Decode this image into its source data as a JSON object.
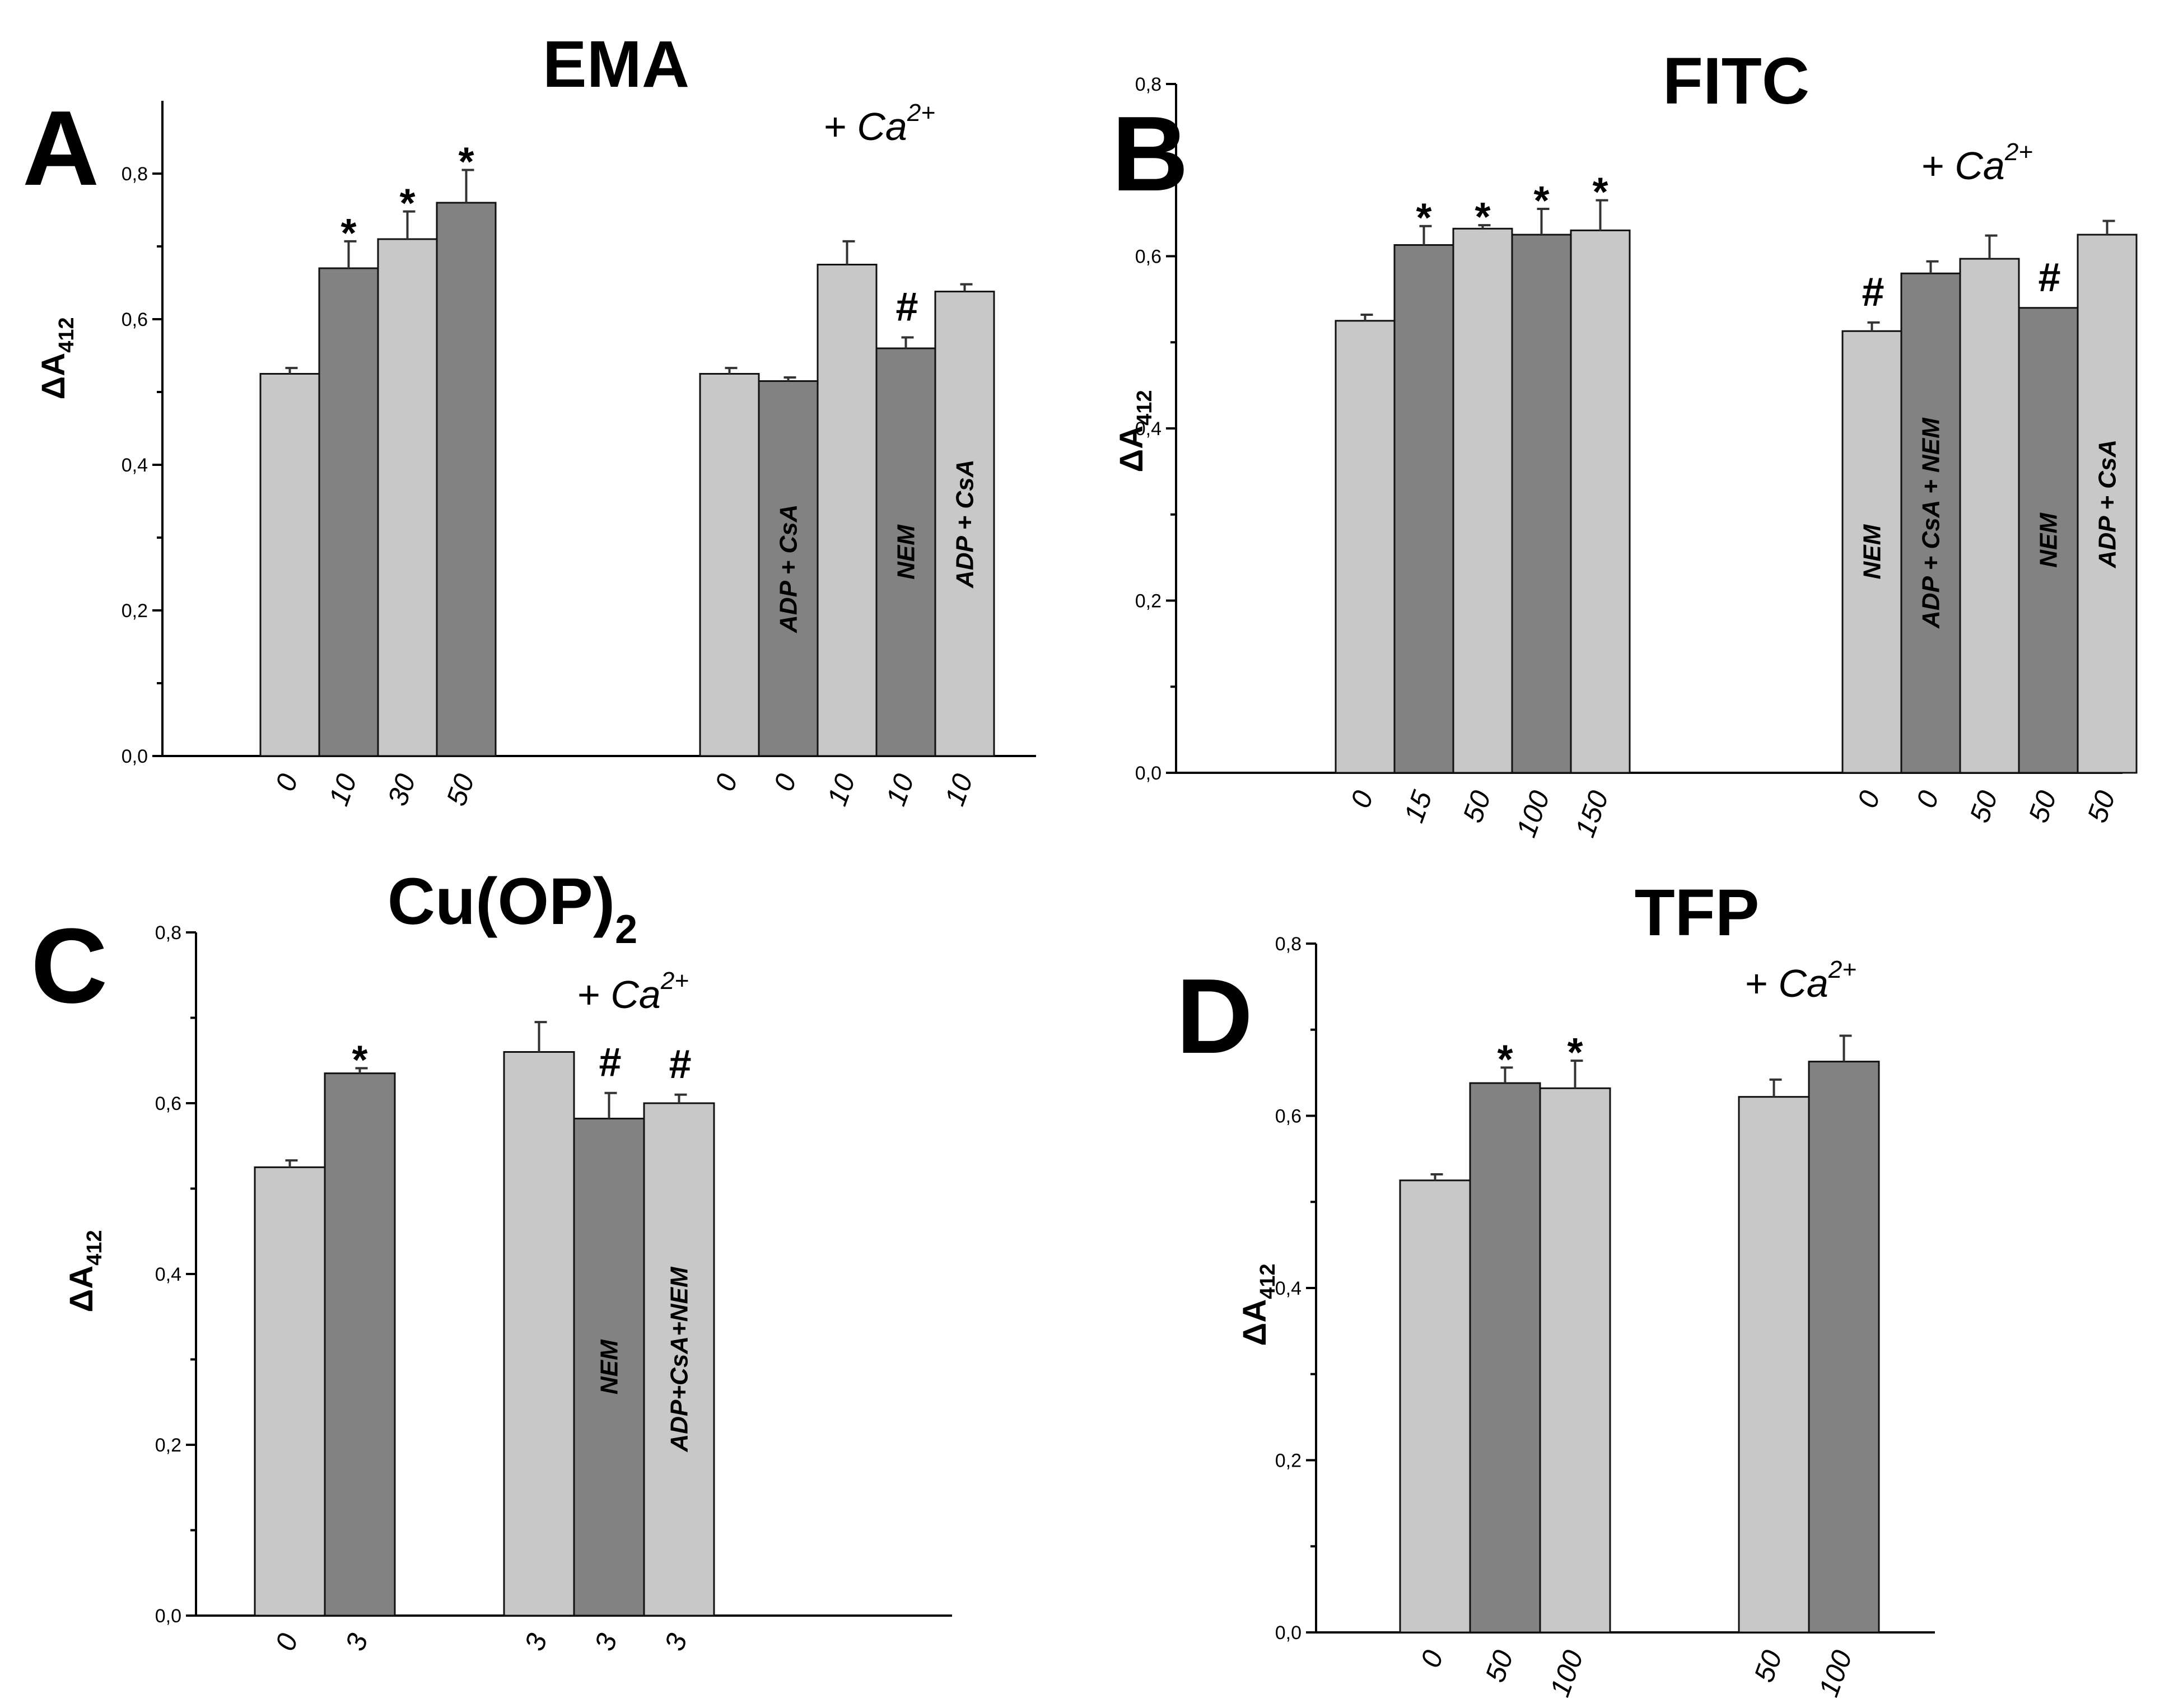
{
  "colors": {
    "light_bar": "#c8c8c8",
    "dark_bar": "#828282",
    "axis": "#000000"
  },
  "ca_label": {
    "prefix": "+ ",
    "main": "Ca",
    "sup": "2+"
  },
  "chart_data": [
    {
      "type": "bar",
      "letter": "A",
      "title": "EMA",
      "title_sub": "",
      "ylabel": "ΔA",
      "ylabel_sub": "412",
      "ylim": [
        0,
        0.9
      ],
      "yticks": [
        0,
        0.2,
        0.4,
        0.6,
        0.8
      ],
      "ytick_labels": [
        "0,0",
        "0,2",
        "0,4",
        "0,6",
        "0,8"
      ],
      "groups": [
        {
          "ca": false,
          "bars": [
            {
              "category": "0",
              "value": 0.525,
              "error": 0.008,
              "shade": "light",
              "mark": "",
              "label": ""
            },
            {
              "category": "10",
              "value": 0.67,
              "error": 0.037,
              "shade": "dark",
              "mark": "*",
              "label": ""
            },
            {
              "category": "30",
              "value": 0.71,
              "error": 0.038,
              "shade": "light",
              "mark": "*",
              "label": ""
            },
            {
              "category": "50",
              "value": 0.76,
              "error": 0.045,
              "shade": "dark",
              "mark": "*",
              "label": ""
            }
          ]
        },
        {
          "ca": true,
          "bars": [
            {
              "category": "0",
              "value": 0.525,
              "error": 0.008,
              "shade": "light",
              "mark": "",
              "label": ""
            },
            {
              "category": "0",
              "value": 0.515,
              "error": 0.005,
              "shade": "dark",
              "mark": "",
              "label": "ADP + CsA"
            },
            {
              "category": "10",
              "value": 0.675,
              "error": 0.032,
              "shade": "light",
              "mark": "",
              "label": ""
            },
            {
              "category": "10",
              "value": 0.56,
              "error": 0.015,
              "shade": "dark",
              "mark": "#",
              "label": "NEM"
            },
            {
              "category": "10",
              "value": 0.638,
              "error": 0.01,
              "shade": "light",
              "mark": "",
              "label": "ADP + CsA"
            }
          ]
        }
      ]
    },
    {
      "type": "bar",
      "letter": "B",
      "title": "FITC",
      "title_sub": "",
      "ylabel": "ΔA",
      "ylabel_sub": "412",
      "ylim": [
        0,
        0.8
      ],
      "yticks": [
        0,
        0.2,
        0.4,
        0.6,
        0.8
      ],
      "ytick_labels": [
        "0,0",
        "0,2",
        "0,4",
        "0,6",
        "0,8"
      ],
      "groups": [
        {
          "ca": false,
          "bars": [
            {
              "category": "0",
              "value": 0.525,
              "error": 0.007,
              "shade": "light",
              "mark": "",
              "label": ""
            },
            {
              "category": "15",
              "value": 0.613,
              "error": 0.022,
              "shade": "dark",
              "mark": "*",
              "label": ""
            },
            {
              "category": "50",
              "value": 0.632,
              "error": 0.004,
              "shade": "light",
              "mark": "*",
              "label": ""
            },
            {
              "category": "100",
              "value": 0.625,
              "error": 0.03,
              "shade": "dark",
              "mark": "*",
              "label": ""
            },
            {
              "category": "150",
              "value": 0.63,
              "error": 0.035,
              "shade": "light",
              "mark": "*",
              "label": ""
            }
          ]
        },
        {
          "ca": true,
          "bars": [
            {
              "category": "0",
              "value": 0.513,
              "error": 0.01,
              "shade": "light",
              "mark": "#",
              "label": "NEM"
            },
            {
              "category": "0",
              "value": 0.58,
              "error": 0.014,
              "shade": "dark",
              "mark": "",
              "label": "ADP + CsA + NEM"
            },
            {
              "category": "50",
              "value": 0.597,
              "error": 0.027,
              "shade": "light",
              "mark": "",
              "label": ""
            },
            {
              "category": "50",
              "value": 0.54,
              "error": 0.0,
              "shade": "dark",
              "mark": "#",
              "label": "NEM"
            },
            {
              "category": "50",
              "value": 0.625,
              "error": 0.016,
              "shade": "light",
              "mark": "",
              "label": "ADP + CsA"
            }
          ]
        }
      ]
    },
    {
      "type": "bar",
      "letter": "C",
      "title": "Cu(OP)",
      "title_sub": "2",
      "ylabel": "ΔA",
      "ylabel_sub": "412",
      "ylim": [
        0,
        0.8
      ],
      "yticks": [
        0,
        0.2,
        0.4,
        0.6,
        0.8
      ],
      "ytick_labels": [
        "0,0",
        "0,2",
        "0,4",
        "0,6",
        "0,8"
      ],
      "groups": [
        {
          "ca": false,
          "bars": [
            {
              "category": "0",
              "value": 0.525,
              "error": 0.008,
              "shade": "light",
              "mark": "",
              "label": ""
            },
            {
              "category": "3",
              "value": 0.635,
              "error": 0.006,
              "shade": "dark",
              "mark": "*",
              "label": ""
            }
          ]
        },
        {
          "ca": true,
          "bars": [
            {
              "category": "3",
              "value": 0.66,
              "error": 0.035,
              "shade": "light",
              "mark": "",
              "label": ""
            },
            {
              "category": "3",
              "value": 0.582,
              "error": 0.03,
              "shade": "dark",
              "mark": "#",
              "label": "NEM"
            },
            {
              "category": "3",
              "value": 0.6,
              "error": 0.01,
              "shade": "light",
              "mark": "#",
              "label": "ADP+CsA+NEM"
            }
          ]
        }
      ]
    },
    {
      "type": "bar",
      "letter": "D",
      "title": "TFP",
      "title_sub": "",
      "ylabel": "ΔA",
      "ylabel_sub": "412",
      "ylim": [
        0,
        0.8
      ],
      "yticks": [
        0,
        0.2,
        0.4,
        0.6,
        0.8
      ],
      "ytick_labels": [
        "0,0",
        "0,2",
        "0,4",
        "0,6",
        "0,8"
      ],
      "groups": [
        {
          "ca": false,
          "bars": [
            {
              "category": "0",
              "value": 0.525,
              "error": 0.007,
              "shade": "light",
              "mark": "",
              "label": ""
            },
            {
              "category": "50",
              "value": 0.638,
              "error": 0.018,
              "shade": "dark",
              "mark": "*",
              "label": ""
            },
            {
              "category": "100",
              "value": 0.632,
              "error": 0.032,
              "shade": "light",
              "mark": "*",
              "label": ""
            }
          ]
        },
        {
          "ca": true,
          "bars": [
            {
              "category": "50",
              "value": 0.622,
              "error": 0.02,
              "shade": "light",
              "mark": "",
              "label": ""
            },
            {
              "category": "100",
              "value": 0.663,
              "error": 0.03,
              "shade": "dark",
              "mark": "",
              "label": ""
            }
          ]
        }
      ]
    }
  ]
}
